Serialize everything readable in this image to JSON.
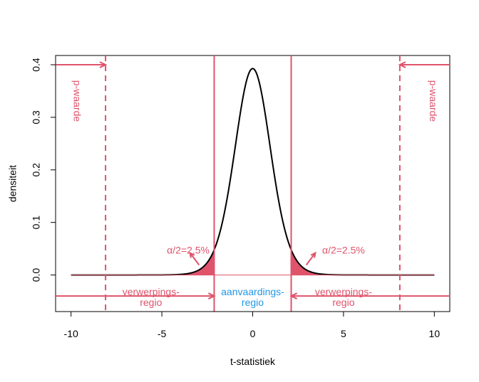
{
  "colors": {
    "reject": "#DF536B",
    "accept": "#2297E6",
    "curve": "#000000",
    "axis": "#000000"
  },
  "chart_data": {
    "type": "line",
    "title": "",
    "xlabel": "t-statistiek",
    "ylabel": "densiteit",
    "xlim": [
      -10.85,
      10.85
    ],
    "ylim": [
      -0.0696,
      0.4176
    ],
    "x_ticks": [
      -10,
      -5,
      0,
      5,
      10
    ],
    "x_tick_labels": [
      "-10",
      "-5",
      "0",
      "5",
      "10"
    ],
    "y_ticks": [
      0.0,
      0.1,
      0.2,
      0.3,
      0.4
    ],
    "y_tick_labels": [
      "0.0",
      "0.1",
      "0.2",
      "0.3",
      "0.4"
    ],
    "grid": false,
    "distribution": {
      "name": "t",
      "df": 16,
      "x_range": [
        -10,
        10
      ]
    },
    "critical_values": [
      -2.12,
      2.12
    ],
    "observed_statistic": [
      -8.1,
      8.1
    ],
    "observed_arrow_level": 0.4,
    "region_arrow_level": -0.04,
    "annotations": {
      "alpha_left": "α/2=2.5%",
      "alpha_right": "α/2=2.5%",
      "reject_left_line1": "verwerpings-",
      "reject_left_line2": "regio",
      "reject_right_line1": "verwerpings-",
      "reject_right_line2": "regio",
      "accept_line1": "aanvaardings-",
      "accept_line2": "regio",
      "pvalue_left": "p-waarde",
      "pvalue_right": "p-waarde"
    }
  }
}
